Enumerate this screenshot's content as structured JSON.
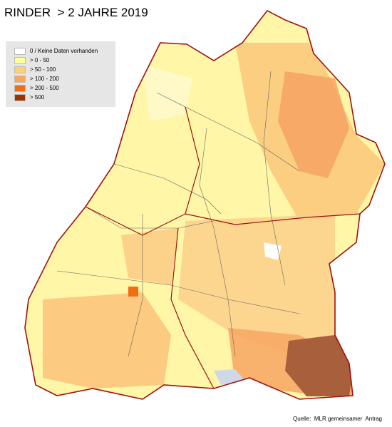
{
  "title": "RINDER  > 2 JAHRE 2019",
  "legend": {
    "items": [
      {
        "label": "0 / Keine Daten vorhanden",
        "color": "#ffffff"
      },
      {
        "label": "> 0 - 50",
        "color": "#ffff99"
      },
      {
        "label": "> 50 - 100",
        "color": "#fdd173"
      },
      {
        "label": "> 100 - 200",
        "color": "#f9a65a"
      },
      {
        "label": "> 200 - 500",
        "color": "#f26d14"
      },
      {
        "label": "> 500",
        "color": "#993300"
      }
    ]
  },
  "source": "Quelle:  MLR gemeinsamer  Antrag"
}
